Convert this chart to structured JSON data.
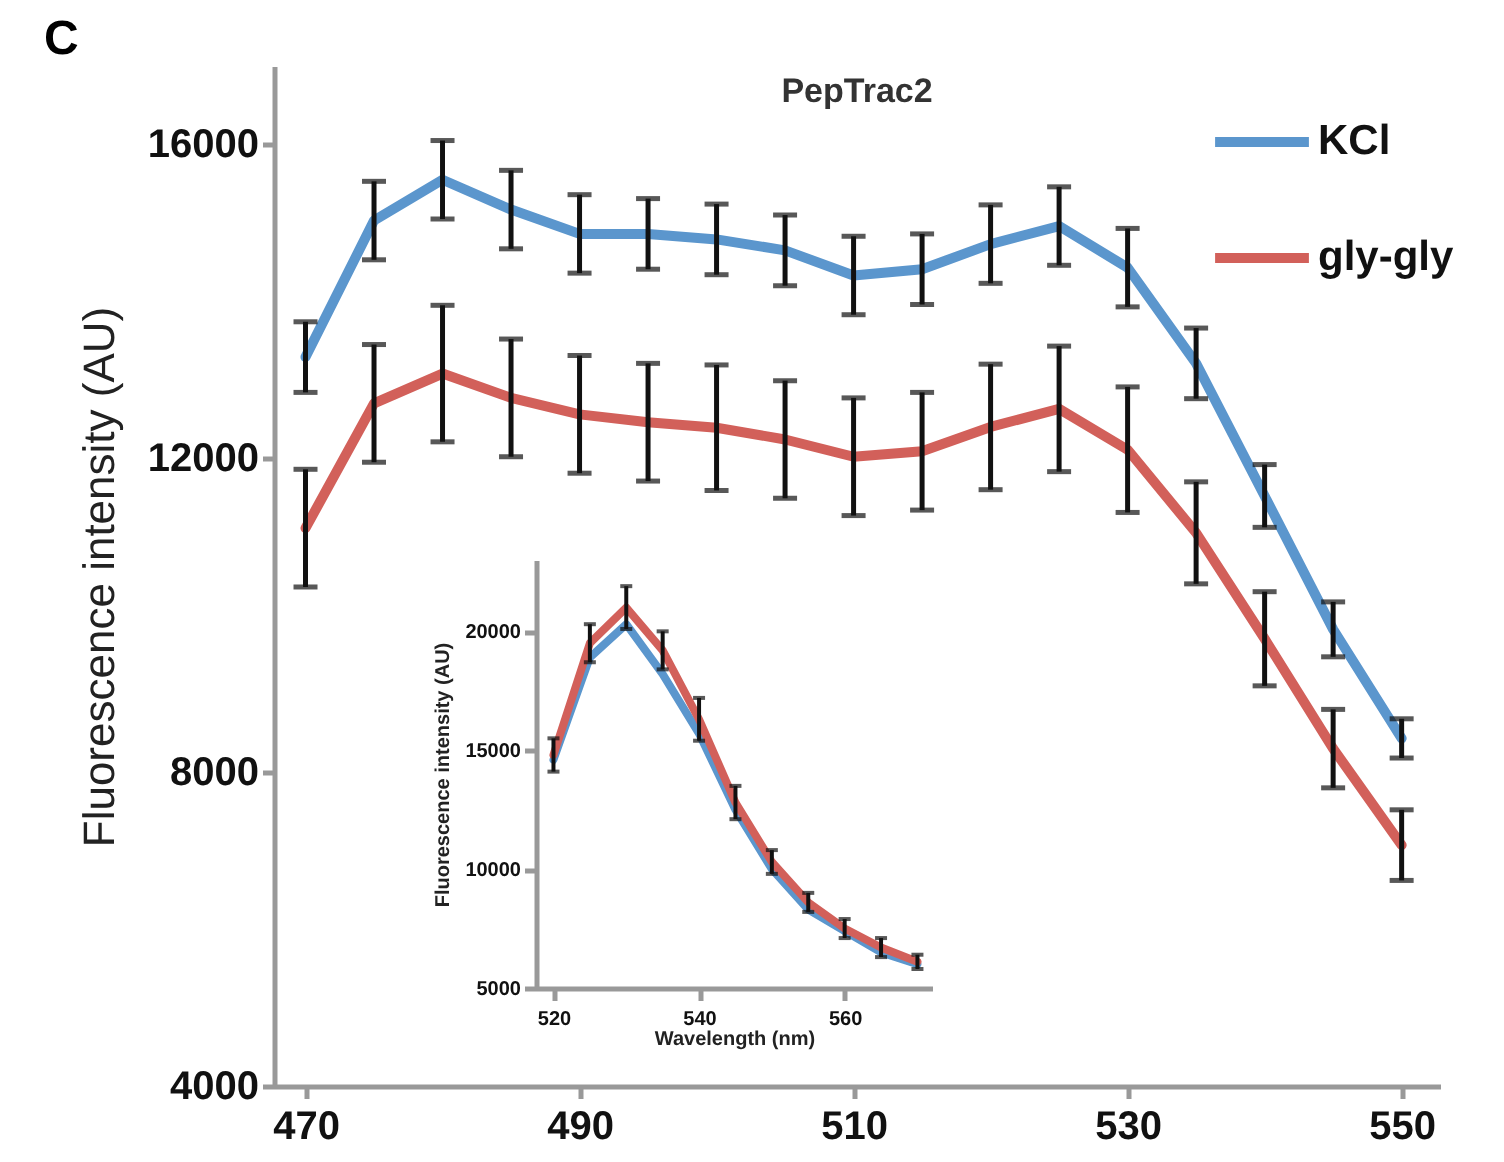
{
  "chart_data": [
    {
      "type": "line",
      "title": "PepTrac2",
      "ylabel": "Fluorescence intensity (AU)",
      "annotations": [
        "C"
      ],
      "x": [
        470,
        475,
        480,
        485,
        490,
        495,
        500,
        505,
        510,
        515,
        520,
        525,
        530,
        535,
        540,
        545,
        550
      ],
      "series": [
        {
          "name": "KCl",
          "color": "#5b96cd",
          "values": [
            13290,
            15030,
            15550,
            15170,
            14860,
            14860,
            14790,
            14650,
            14330,
            14410,
            14730,
            14960,
            14430,
            13210,
            11520,
            9820,
            8430
          ],
          "errors": [
            450,
            500,
            500,
            500,
            500,
            450,
            450,
            450,
            500,
            450,
            500,
            500,
            500,
            450,
            400,
            350,
            250
          ]
        },
        {
          "name": "gly-gly",
          "color": "#d2605a",
          "values": [
            11110,
            12700,
            13080,
            12770,
            12560,
            12460,
            12390,
            12240,
            12020,
            12090,
            12400,
            12630,
            12110,
            11050,
            9700,
            8300,
            7070
          ],
          "errors": [
            750,
            750,
            870,
            750,
            750,
            750,
            800,
            750,
            750,
            750,
            800,
            800,
            800,
            650,
            600,
            500,
            450
          ]
        }
      ],
      "xlim": [
        467.7,
        552.8
      ],
      "xticks": [
        470,
        490,
        510,
        530,
        550
      ],
      "ylim": [
        4000,
        17000
      ],
      "yticks": [
        4000,
        8000,
        12000,
        16000
      ],
      "legend": "top right"
    },
    {
      "type": "line",
      "xlabel": "Wavelength (nm)",
      "ylabel": "Fluorescence intensity (AU)",
      "x": [
        520,
        525,
        530,
        535,
        540,
        545,
        550,
        555,
        560,
        565,
        570
      ],
      "series": [
        {
          "color": "#5b96cd",
          "values": [
            14600,
            18900,
            20300,
            18200,
            15700,
            12500,
            10000,
            8300,
            7400,
            6500,
            6000
          ]
        },
        {
          "color": "#d2605a",
          "values": [
            14800,
            19500,
            21000,
            19200,
            16300,
            12800,
            10300,
            8600,
            7500,
            6700,
            6100
          ],
          "errors": [
            700,
            800,
            900,
            800,
            900,
            700,
            500,
            400,
            400,
            400,
            300
          ]
        }
      ],
      "xlim": [
        517.6,
        572
      ],
      "xticks": [
        520,
        540,
        560
      ],
      "ylim": [
        5000,
        23000
      ],
      "yticks": [
        5000,
        10000,
        15000,
        20000
      ]
    }
  ]
}
